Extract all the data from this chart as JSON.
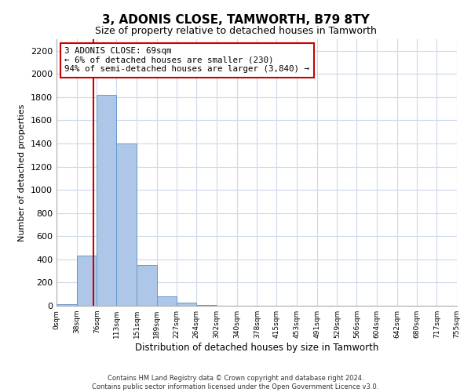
{
  "title": "3, ADONIS CLOSE, TAMWORTH, B79 8TY",
  "subtitle": "Size of property relative to detached houses in Tamworth",
  "xlabel": "Distribution of detached houses by size in Tamworth",
  "ylabel": "Number of detached properties",
  "bar_edges": [
    0,
    38,
    76,
    113,
    151,
    189,
    227,
    264,
    302,
    340,
    378,
    415,
    453,
    491,
    529,
    566,
    604,
    642,
    680,
    717,
    755
  ],
  "bar_heights": [
    15,
    430,
    1820,
    1400,
    350,
    80,
    30,
    5,
    0,
    0,
    0,
    0,
    0,
    0,
    0,
    0,
    0,
    0,
    0,
    0
  ],
  "bar_color": "#aec6e8",
  "bar_edgecolor": "#6699cc",
  "property_size": 69,
  "vline_color": "#cc0000",
  "annotation_text": "3 ADONIS CLOSE: 69sqm\n← 6% of detached houses are smaller (230)\n94% of semi-detached houses are larger (3,840) →",
  "annotation_bbox_edgecolor": "#cc0000",
  "annotation_bbox_facecolor": "#ffffff",
  "ylim": [
    0,
    2300
  ],
  "yticks": [
    0,
    200,
    400,
    600,
    800,
    1000,
    1200,
    1400,
    1600,
    1800,
    2000,
    2200
  ],
  "tick_labels": [
    "0sqm",
    "38sqm",
    "76sqm",
    "113sqm",
    "151sqm",
    "189sqm",
    "227sqm",
    "264sqm",
    "302sqm",
    "340sqm",
    "378sqm",
    "415sqm",
    "453sqm",
    "491sqm",
    "529sqm",
    "566sqm",
    "604sqm",
    "642sqm",
    "680sqm",
    "717sqm",
    "755sqm"
  ],
  "footer_text": "Contains HM Land Registry data © Crown copyright and database right 2024.\nContains public sector information licensed under the Open Government Licence v3.0.",
  "grid_color": "#ccd8ec",
  "background_color": "#ffffff"
}
